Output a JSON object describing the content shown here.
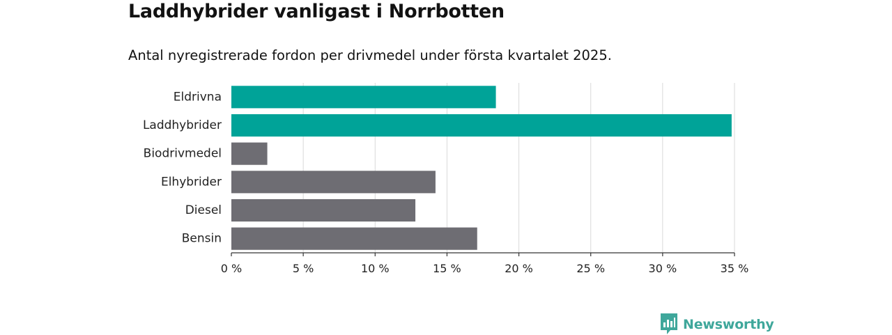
{
  "chart_data": {
    "type": "bar",
    "orientation": "horizontal",
    "title": "Laddhybrider vanligast i Norrbotten",
    "subtitle": "Antal nyregistrerade fordon per drivmedel under första kvartalet 2025.",
    "categories": [
      "Eldrivna",
      "Laddhybrider",
      "Biodrivmedel",
      "Elhybrider",
      "Diesel",
      "Bensin"
    ],
    "values": [
      18.4,
      34.8,
      2.5,
      14.2,
      12.8,
      17.1
    ],
    "highlighted": [
      true,
      true,
      false,
      false,
      false,
      false
    ],
    "xlim": [
      0,
      35
    ],
    "xticks": [
      0,
      5,
      10,
      15,
      20,
      25,
      30,
      35
    ],
    "xtick_labels": [
      "0 %",
      "5 %",
      "10 %",
      "15 %",
      "20 %",
      "25 %",
      "30 %",
      "35 %"
    ],
    "grid": "vertical",
    "colors": {
      "highlight": "#00a398",
      "default": "#6e6d73",
      "grid": "#d9d9d9",
      "axis": "#333333"
    }
  },
  "brand": {
    "name": "Newsworthy",
    "icon": "newsworthy-logo-icon",
    "color": "#3fa79b"
  }
}
